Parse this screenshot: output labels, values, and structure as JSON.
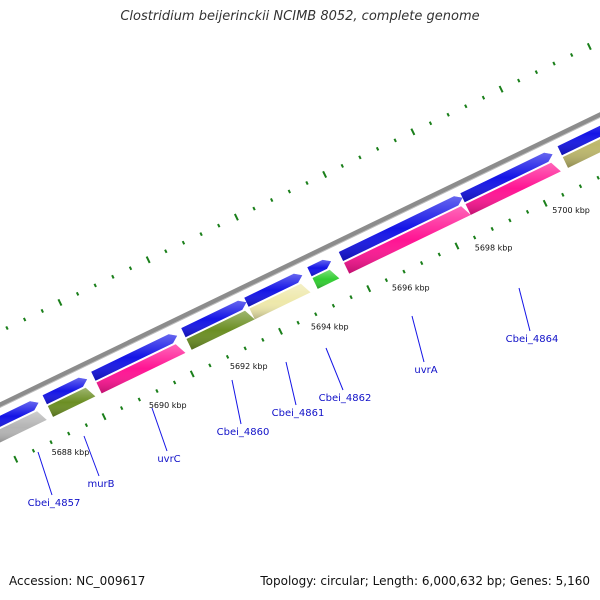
{
  "title": "Clostridium beijerinckii NCIMB 8052, complete genome",
  "footer": {
    "accession": "Accession: NC_009617",
    "summary": "Topology: circular; Length: 6,000,632 bp; Genes: 5,160"
  },
  "colors": {
    "backbone": "#8c8c8c",
    "minor_tick": "#1a7f1a",
    "cds_strand": "#1414e6",
    "label_line": "#1414e6",
    "label_text": "#1010c8"
  },
  "scale_labels": [
    "5688 kbp",
    "5690 kbp",
    "5692 kbp",
    "5694 kbp",
    "5696 kbp",
    "5698 kbp",
    "5700 kbp"
  ],
  "genes": [
    {
      "name": "Cbei_4857",
      "category_color": "#b4b4b4"
    },
    {
      "name": "murB",
      "category_color": "#6b8e23"
    },
    {
      "name": "uvrC",
      "category_color": "#ff1493"
    },
    {
      "name": "Cbei_4860",
      "category_color": "#6b8e23"
    },
    {
      "name": "Cbei_4861",
      "category_color": "#eee8aa"
    },
    {
      "name": "Cbei_4862",
      "category_color": "#32cd32"
    },
    {
      "name": "uvrA",
      "category_color": "#ff1493"
    },
    {
      "name": "Cbei_4864",
      "category_color": "#ff1493"
    },
    {
      "name": "",
      "category_color": "#bdb76b"
    }
  ]
}
